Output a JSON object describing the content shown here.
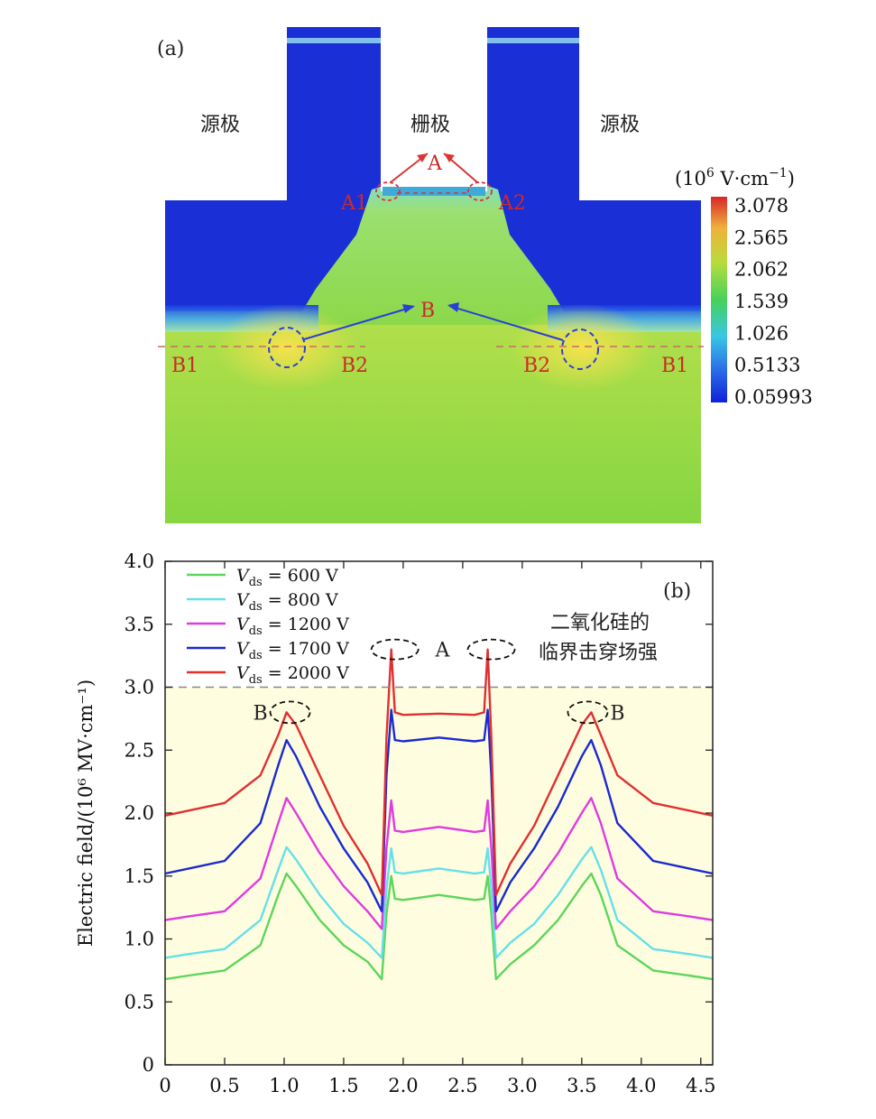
{
  "panel_a": {
    "label": "(a)",
    "region_labels": {
      "source_left": "源极",
      "gate": "栅极",
      "source_right": "源极"
    },
    "points": {
      "A": "A",
      "A1": "A1",
      "A2": "A2",
      "B": "B",
      "B1_left": "B1",
      "B2_left": "B2",
      "B2_right": "B2",
      "B1_right": "B1"
    },
    "colorbar": {
      "unit_base": "(10",
      "unit_exp": "6",
      "unit_mid": " V·cm",
      "unit_exp2": "−1",
      "unit_end": ")",
      "ticks": [
        "3.078",
        "2.565",
        "2.062",
        "1.539",
        "1.026",
        "0.5133",
        "0.05993"
      ],
      "colors": [
        "#d8262a",
        "#f0c43a",
        "#7fd63f",
        "#46d25a",
        "#39c6e4",
        "#2a6ee8",
        "#1020d8"
      ]
    },
    "colors": {
      "low": "#1a2fd6",
      "mid": "#5fd2e0",
      "high": "#8ad64a",
      "peak": "#f2e24a"
    }
  },
  "chart_data": {
    "type": "line",
    "panel_label": "(b)",
    "ylabel": "Electric field/(10⁶ MV·cm⁻¹)",
    "xlabel": "",
    "xlim": [
      0,
      4.6
    ],
    "ylim": [
      0,
      4.0
    ],
    "xticks": [
      "0",
      "0.5",
      "1.0",
      "1.5",
      "2.0",
      "2.5",
      "3.0",
      "3.5",
      "4.0",
      "4.5"
    ],
    "yticks": [
      "0",
      "0.5",
      "1.0",
      "1.5",
      "2.0",
      "2.5",
      "3.0",
      "3.5",
      "4.0"
    ],
    "threshold": {
      "y": 3.0,
      "label_line1": "二氧化硅的",
      "label_line2": "临界击穿场强"
    },
    "annotations": {
      "A": "A",
      "B_left": "B",
      "B_right": "B"
    },
    "x": [
      0,
      0.2,
      0.5,
      0.8,
      0.95,
      1.02,
      1.1,
      1.3,
      1.5,
      1.7,
      1.82,
      1.86,
      1.9,
      1.93,
      2.0,
      2.3,
      2.6,
      2.68,
      2.71,
      2.74,
      2.78,
      2.9,
      3.1,
      3.3,
      3.5,
      3.58,
      3.66,
      3.8,
      4.1,
      4.4,
      4.6
    ],
    "series": [
      {
        "name": "600 V",
        "color": "#5cd65c",
        "values": [
          0.68,
          0.71,
          0.75,
          0.95,
          1.35,
          1.52,
          1.42,
          1.15,
          0.95,
          0.82,
          0.68,
          1.2,
          1.5,
          1.32,
          1.31,
          1.35,
          1.31,
          1.32,
          1.5,
          1.2,
          0.68,
          0.8,
          0.95,
          1.15,
          1.42,
          1.52,
          1.35,
          0.95,
          0.75,
          0.71,
          0.68
        ]
      },
      {
        "name": "800 V",
        "color": "#66e0e8",
        "values": [
          0.85,
          0.88,
          0.92,
          1.15,
          1.55,
          1.73,
          1.63,
          1.35,
          1.12,
          0.97,
          0.85,
          1.4,
          1.72,
          1.53,
          1.52,
          1.56,
          1.52,
          1.53,
          1.72,
          1.4,
          0.85,
          0.97,
          1.12,
          1.35,
          1.63,
          1.73,
          1.55,
          1.15,
          0.92,
          0.88,
          0.85
        ]
      },
      {
        "name": "1200 V",
        "color": "#e03ae0",
        "values": [
          1.15,
          1.18,
          1.22,
          1.48,
          1.92,
          2.12,
          2.0,
          1.68,
          1.42,
          1.22,
          1.08,
          1.72,
          2.1,
          1.86,
          1.85,
          1.89,
          1.85,
          1.86,
          2.1,
          1.72,
          1.08,
          1.22,
          1.42,
          1.68,
          2.0,
          2.12,
          1.92,
          1.48,
          1.22,
          1.18,
          1.15
        ]
      },
      {
        "name": "1700 V",
        "color": "#1a2ad0",
        "values": [
          1.52,
          1.56,
          1.62,
          1.92,
          2.38,
          2.58,
          2.45,
          2.05,
          1.72,
          1.45,
          1.22,
          2.3,
          2.82,
          2.58,
          2.57,
          2.6,
          2.57,
          2.58,
          2.82,
          2.3,
          1.22,
          1.45,
          1.72,
          2.05,
          2.45,
          2.58,
          2.38,
          1.92,
          1.62,
          1.56,
          1.52
        ]
      },
      {
        "name": "2000 V",
        "color": "#e03030",
        "values": [
          1.98,
          2.02,
          2.08,
          2.3,
          2.62,
          2.8,
          2.7,
          2.3,
          1.9,
          1.6,
          1.35,
          2.6,
          3.3,
          2.8,
          2.78,
          2.79,
          2.78,
          2.8,
          3.3,
          2.6,
          1.35,
          1.6,
          1.9,
          2.3,
          2.7,
          2.8,
          2.62,
          2.3,
          2.08,
          2.02,
          1.98
        ]
      }
    ],
    "legend_prefix": "V",
    "legend_sub": "ds",
    "legend_eq": " = "
  }
}
